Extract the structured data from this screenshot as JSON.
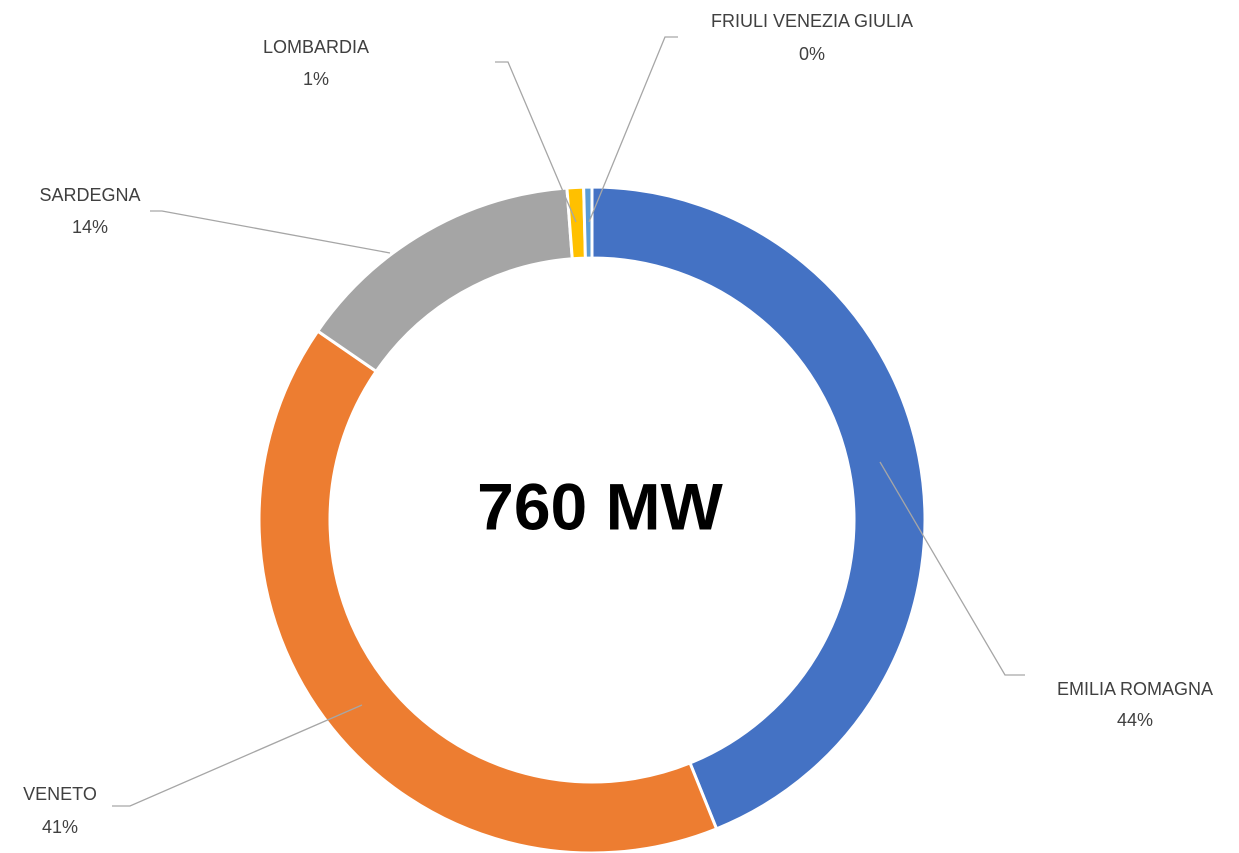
{
  "chart_data": {
    "type": "donut",
    "center_label": "760 MW",
    "categories": [
      "EMILIA ROMAGNA",
      "VENETO",
      "SARDEGNA",
      "LOMBARDIA",
      "FRIULI VENEZIA GIULIA"
    ],
    "values": [
      43.9,
      40.7,
      14.2,
      0.8,
      0.4
    ],
    "value_labels": [
      "44%",
      "41%",
      "14%",
      "1%",
      "0%"
    ],
    "colors": [
      "#4472c4",
      "#ed7d31",
      "#a5a5a5",
      "#ffc000",
      "#5b9bd5"
    ]
  }
}
